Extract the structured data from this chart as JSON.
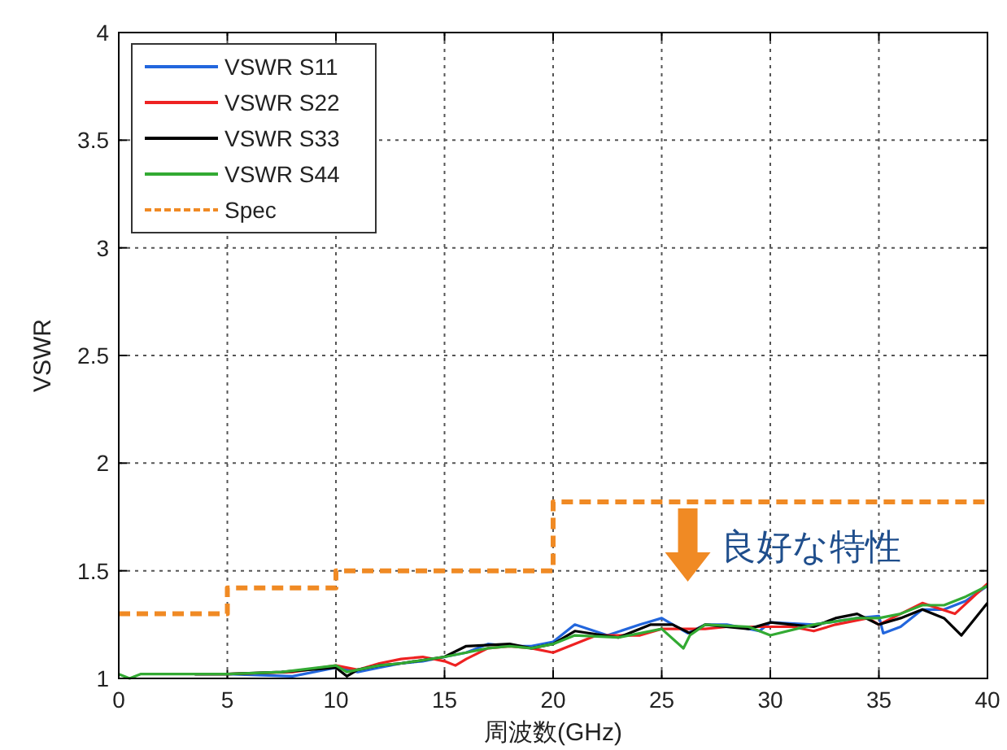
{
  "chart_data": {
    "type": "line",
    "xlabel": "周波数(GHz)",
    "ylabel": "VSWR",
    "xlim": [
      0,
      40
    ],
    "xticks": [
      0,
      5,
      10,
      15,
      20,
      25,
      30,
      35,
      40
    ],
    "ylim": [
      1,
      4
    ],
    "yticks": [
      1,
      1.5,
      2,
      2.5,
      3,
      3.5,
      4
    ],
    "grid": true,
    "legend": "top left",
    "series": [
      {
        "name": "VSWR S11",
        "color": "#2266dd",
        "x": [
          3.5,
          5,
          8,
          10,
          11,
          12,
          13,
          14,
          15,
          16,
          17,
          18,
          19,
          20,
          21,
          22.5,
          24,
          25,
          26.2,
          27,
          28,
          29.5,
          30,
          32,
          34,
          35,
          35.2,
          36,
          37,
          38,
          39,
          40
        ],
        "values": [
          1.02,
          1.02,
          1.01,
          1.05,
          1.03,
          1.05,
          1.07,
          1.08,
          1.1,
          1.12,
          1.16,
          1.15,
          1.15,
          1.17,
          1.25,
          1.2,
          1.25,
          1.28,
          1.21,
          1.25,
          1.25,
          1.22,
          1.26,
          1.25,
          1.28,
          1.29,
          1.21,
          1.24,
          1.32,
          1.32,
          1.36,
          1.43
        ]
      },
      {
        "name": "VSWR S22",
        "color": "#ee2222",
        "x": [
          3.5,
          5,
          8,
          10,
          11,
          12,
          13,
          14,
          15,
          15.5,
          16,
          17,
          18,
          19,
          20,
          22,
          24,
          25,
          26,
          27,
          28,
          30,
          31,
          32,
          33,
          34.5,
          35,
          36,
          37,
          38.5,
          40
        ],
        "values": [
          1.02,
          1.02,
          1.03,
          1.06,
          1.04,
          1.07,
          1.09,
          1.1,
          1.08,
          1.06,
          1.09,
          1.14,
          1.15,
          1.14,
          1.12,
          1.2,
          1.2,
          1.23,
          1.23,
          1.23,
          1.24,
          1.24,
          1.24,
          1.22,
          1.25,
          1.28,
          1.25,
          1.3,
          1.35,
          1.3,
          1.44
        ]
      },
      {
        "name": "VSWR S33",
        "color": "#000000",
        "x": [
          3.5,
          5,
          7.5,
          10,
          10.5,
          11,
          12,
          13,
          15,
          16,
          18,
          19,
          20,
          21,
          23,
          24.5,
          25.5,
          26.3,
          27,
          29,
          30,
          31,
          32,
          33,
          34,
          35,
          36,
          37,
          38,
          38.8,
          40
        ],
        "values": [
          1.02,
          1.02,
          1.03,
          1.05,
          1.01,
          1.04,
          1.06,
          1.07,
          1.1,
          1.15,
          1.16,
          1.14,
          1.16,
          1.22,
          1.19,
          1.25,
          1.25,
          1.21,
          1.25,
          1.23,
          1.26,
          1.25,
          1.24,
          1.28,
          1.3,
          1.25,
          1.28,
          1.32,
          1.28,
          1.2,
          1.35
        ]
      },
      {
        "name": "VSWR S44",
        "color": "#33aa33",
        "x": [
          0,
          0.5,
          1,
          3,
          5,
          7.5,
          10,
          10.5,
          11,
          12,
          13,
          15,
          16,
          17,
          18,
          19,
          20,
          21,
          23,
          25,
          26,
          26.3,
          27,
          29,
          30,
          32,
          34,
          35,
          36,
          37,
          38,
          39,
          40
        ],
        "values": [
          1.02,
          1.0,
          1.02,
          1.02,
          1.02,
          1.03,
          1.06,
          1.03,
          1.04,
          1.06,
          1.07,
          1.1,
          1.12,
          1.14,
          1.15,
          1.14,
          1.16,
          1.2,
          1.19,
          1.23,
          1.14,
          1.2,
          1.25,
          1.24,
          1.2,
          1.25,
          1.28,
          1.28,
          1.3,
          1.34,
          1.34,
          1.38,
          1.43
        ]
      },
      {
        "name": "Spec",
        "color": "#f08a24",
        "line_style": "dashed",
        "x": [
          0,
          5,
          5,
          10,
          10,
          20,
          20,
          40
        ],
        "values": [
          1.3,
          1.3,
          1.42,
          1.42,
          1.5,
          1.5,
          1.82,
          1.82
        ]
      }
    ],
    "annotations": [
      "良好な特性"
    ]
  }
}
